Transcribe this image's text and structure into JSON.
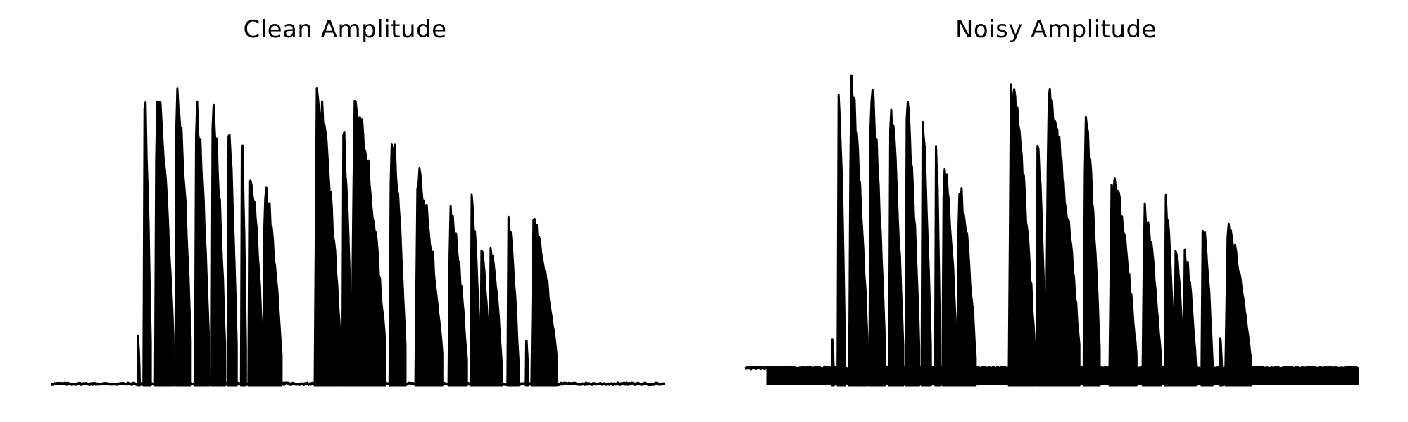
{
  "chart_data": [
    {
      "type": "area",
      "title": "Clean Amplitude",
      "xlabel": "",
      "ylabel": "",
      "axes_visible": false,
      "grid": false,
      "color": "#000000",
      "baseline": 0.005,
      "segments": [
        {
          "start": 0.142,
          "end": 0.145,
          "peak": 0.16
        },
        {
          "start": 0.151,
          "end": 0.163,
          "peak": 0.98
        },
        {
          "start": 0.17,
          "end": 0.2,
          "peak": 0.99
        },
        {
          "start": 0.203,
          "end": 0.228,
          "peak": 0.99
        },
        {
          "start": 0.235,
          "end": 0.258,
          "peak": 0.91
        },
        {
          "start": 0.262,
          "end": 0.284,
          "peak": 0.92
        },
        {
          "start": 0.288,
          "end": 0.303,
          "peak": 0.86
        },
        {
          "start": 0.31,
          "end": 0.318,
          "peak": 0.85
        },
        {
          "start": 0.322,
          "end": 0.346,
          "peak": 0.73
        },
        {
          "start": 0.346,
          "end": 0.376,
          "peak": 0.66
        },
        {
          "start": 0.43,
          "end": 0.472,
          "peak": 0.98
        },
        {
          "start": 0.475,
          "end": 0.49,
          "peak": 0.84
        },
        {
          "start": 0.49,
          "end": 0.545,
          "peak": 0.94
        },
        {
          "start": 0.552,
          "end": 0.578,
          "peak": 0.86
        },
        {
          "start": 0.594,
          "end": 0.638,
          "peak": 0.7
        },
        {
          "start": 0.648,
          "end": 0.678,
          "peak": 0.58
        },
        {
          "start": 0.684,
          "end": 0.7,
          "peak": 0.61
        },
        {
          "start": 0.7,
          "end": 0.715,
          "peak": 0.47
        },
        {
          "start": 0.715,
          "end": 0.735,
          "peak": 0.44
        },
        {
          "start": 0.744,
          "end": 0.762,
          "peak": 0.54
        },
        {
          "start": 0.774,
          "end": 0.778,
          "peak": 0.16
        },
        {
          "start": 0.783,
          "end": 0.825,
          "peak": 0.53
        }
      ]
    },
    {
      "type": "area",
      "title": "Noisy Amplitude",
      "xlabel": "",
      "ylabel": "",
      "axes_visible": false,
      "grid": false,
      "color": "#000000",
      "baseline": 0.055,
      "segments": [
        {
          "start": 0.142,
          "end": 0.145,
          "peak": 0.16
        },
        {
          "start": 0.151,
          "end": 0.163,
          "peak": 0.98
        },
        {
          "start": 0.17,
          "end": 0.2,
          "peak": 0.99
        },
        {
          "start": 0.203,
          "end": 0.228,
          "peak": 0.99
        },
        {
          "start": 0.235,
          "end": 0.258,
          "peak": 0.91
        },
        {
          "start": 0.262,
          "end": 0.284,
          "peak": 0.92
        },
        {
          "start": 0.288,
          "end": 0.303,
          "peak": 0.86
        },
        {
          "start": 0.31,
          "end": 0.318,
          "peak": 0.85
        },
        {
          "start": 0.322,
          "end": 0.346,
          "peak": 0.73
        },
        {
          "start": 0.346,
          "end": 0.376,
          "peak": 0.66
        },
        {
          "start": 0.43,
          "end": 0.472,
          "peak": 0.98
        },
        {
          "start": 0.475,
          "end": 0.49,
          "peak": 0.84
        },
        {
          "start": 0.49,
          "end": 0.545,
          "peak": 0.94
        },
        {
          "start": 0.552,
          "end": 0.578,
          "peak": 0.86
        },
        {
          "start": 0.594,
          "end": 0.638,
          "peak": 0.7
        },
        {
          "start": 0.648,
          "end": 0.678,
          "peak": 0.58
        },
        {
          "start": 0.684,
          "end": 0.7,
          "peak": 0.61
        },
        {
          "start": 0.7,
          "end": 0.715,
          "peak": 0.47
        },
        {
          "start": 0.715,
          "end": 0.735,
          "peak": 0.44
        },
        {
          "start": 0.744,
          "end": 0.762,
          "peak": 0.54
        },
        {
          "start": 0.774,
          "end": 0.778,
          "peak": 0.16
        },
        {
          "start": 0.783,
          "end": 0.825,
          "peak": 0.53
        }
      ]
    }
  ]
}
